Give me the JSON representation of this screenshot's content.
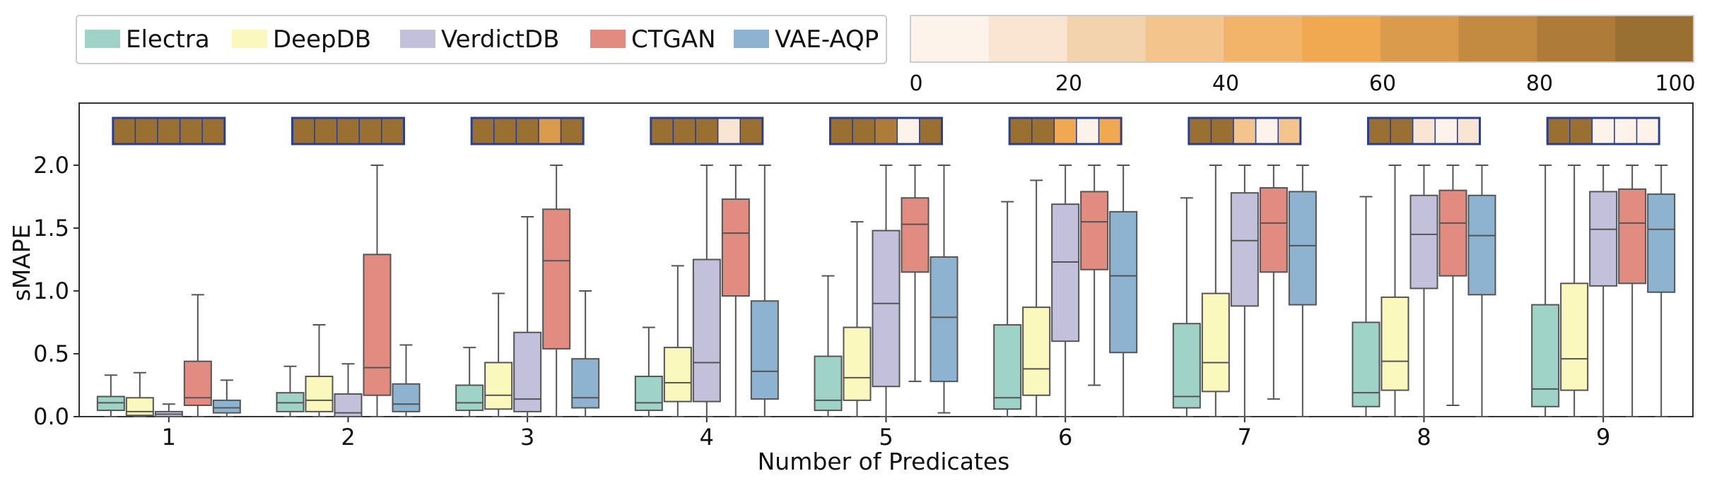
{
  "chart_data": {
    "type": "boxplot",
    "xlabel": "Number of Predicates",
    "ylabel": "sMAPE",
    "ylim": [
      0,
      2.5
    ],
    "yticks": [
      0.0,
      0.5,
      1.0,
      1.5,
      2.0
    ],
    "ytick_labels": [
      "0.0",
      "0.5",
      "1.0",
      "1.5",
      "2.0"
    ],
    "categories": [
      "1",
      "2",
      "3",
      "4",
      "5",
      "6",
      "7",
      "8",
      "9"
    ],
    "legend": [
      {
        "name": "Electra",
        "color": "#9fd3c7"
      },
      {
        "name": "DeepDB",
        "color": "#fbf8bd"
      },
      {
        "name": "VerdictDB",
        "color": "#c3c0dc"
      },
      {
        "name": "CTGAN",
        "color": "#e28b80"
      },
      {
        "name": "VAE-AQP",
        "color": "#8eb3d0"
      }
    ],
    "colorbar": {
      "min": 0,
      "max": 100,
      "tick_labels": [
        "0",
        "20",
        "40",
        "60",
        "80",
        "100"
      ],
      "colors": [
        "#fdf3ea",
        "#f9e5d1",
        "#f2d3ae",
        "#f3c48c",
        "#f1b469",
        "#f0a950",
        "#db9b4c",
        "#c38a41",
        "#ae7b38",
        "#9a6f32"
      ]
    },
    "series": [
      {
        "name": "Electra",
        "boxes": [
          {
            "wl": 0.0,
            "q1": 0.05,
            "med": 0.11,
            "q3": 0.16,
            "wh": 0.33
          },
          {
            "wl": 0.0,
            "q1": 0.04,
            "med": 0.11,
            "q3": 0.19,
            "wh": 0.4
          },
          {
            "wl": 0.0,
            "q1": 0.05,
            "med": 0.11,
            "q3": 0.25,
            "wh": 0.55
          },
          {
            "wl": 0.0,
            "q1": 0.05,
            "med": 0.11,
            "q3": 0.32,
            "wh": 0.71
          },
          {
            "wl": 0.0,
            "q1": 0.05,
            "med": 0.13,
            "q3": 0.48,
            "wh": 1.12
          },
          {
            "wl": 0.0,
            "q1": 0.06,
            "med": 0.15,
            "q3": 0.73,
            "wh": 1.71
          },
          {
            "wl": 0.0,
            "q1": 0.07,
            "med": 0.16,
            "q3": 0.74,
            "wh": 1.74
          },
          {
            "wl": 0.0,
            "q1": 0.08,
            "med": 0.19,
            "q3": 0.75,
            "wh": 1.75
          },
          {
            "wl": 0.0,
            "q1": 0.08,
            "med": 0.22,
            "q3": 0.89,
            "wh": 2.0
          }
        ]
      },
      {
        "name": "DeepDB",
        "boxes": [
          {
            "wl": 0.0,
            "q1": 0.01,
            "med": 0.04,
            "q3": 0.15,
            "wh": 0.35
          },
          {
            "wl": 0.0,
            "q1": 0.04,
            "med": 0.13,
            "q3": 0.32,
            "wh": 0.73
          },
          {
            "wl": 0.0,
            "q1": 0.06,
            "med": 0.17,
            "q3": 0.43,
            "wh": 0.98
          },
          {
            "wl": 0.0,
            "q1": 0.12,
            "med": 0.27,
            "q3": 0.55,
            "wh": 1.2
          },
          {
            "wl": 0.0,
            "q1": 0.13,
            "med": 0.31,
            "q3": 0.71,
            "wh": 1.55
          },
          {
            "wl": 0.0,
            "q1": 0.17,
            "med": 0.38,
            "q3": 0.87,
            "wh": 1.88
          },
          {
            "wl": 0.0,
            "q1": 0.2,
            "med": 0.43,
            "q3": 0.98,
            "wh": 2.0
          },
          {
            "wl": 0.0,
            "q1": 0.21,
            "med": 0.44,
            "q3": 0.95,
            "wh": 2.0
          },
          {
            "wl": 0.0,
            "q1": 0.21,
            "med": 0.46,
            "q3": 1.06,
            "wh": 2.0
          }
        ]
      },
      {
        "name": "VerdictDB",
        "boxes": [
          {
            "wl": 0.0,
            "q1": 0.0,
            "med": 0.02,
            "q3": 0.04,
            "wh": 0.1
          },
          {
            "wl": 0.0,
            "q1": 0.0,
            "med": 0.03,
            "q3": 0.18,
            "wh": 0.42
          },
          {
            "wl": 0.0,
            "q1": 0.04,
            "med": 0.14,
            "q3": 0.67,
            "wh": 1.59
          },
          {
            "wl": 0.0,
            "q1": 0.12,
            "med": 0.43,
            "q3": 1.25,
            "wh": 2.0
          },
          {
            "wl": 0.0,
            "q1": 0.24,
            "med": 0.9,
            "q3": 1.48,
            "wh": 2.0
          },
          {
            "wl": 0.0,
            "q1": 0.6,
            "med": 1.23,
            "q3": 1.69,
            "wh": 2.0
          },
          {
            "wl": 0.0,
            "q1": 0.88,
            "med": 1.4,
            "q3": 1.78,
            "wh": 2.0
          },
          {
            "wl": 0.0,
            "q1": 1.02,
            "med": 1.45,
            "q3": 1.76,
            "wh": 2.0
          },
          {
            "wl": 0.0,
            "q1": 1.04,
            "med": 1.49,
            "q3": 1.79,
            "wh": 2.0
          }
        ]
      },
      {
        "name": "CTGAN",
        "boxes": [
          {
            "wl": 0.0,
            "q1": 0.09,
            "med": 0.15,
            "q3": 0.44,
            "wh": 0.97
          },
          {
            "wl": 0.0,
            "q1": 0.17,
            "med": 0.39,
            "q3": 1.29,
            "wh": 2.0
          },
          {
            "wl": 0.0,
            "q1": 0.54,
            "med": 1.24,
            "q3": 1.65,
            "wh": 2.0
          },
          {
            "wl": 0.0,
            "q1": 0.96,
            "med": 1.46,
            "q3": 1.73,
            "wh": 2.0
          },
          {
            "wl": 0.28,
            "q1": 1.15,
            "med": 1.53,
            "q3": 1.74,
            "wh": 2.0
          },
          {
            "wl": 0.25,
            "q1": 1.17,
            "med": 1.55,
            "q3": 1.79,
            "wh": 2.0
          },
          {
            "wl": 0.14,
            "q1": 1.15,
            "med": 1.54,
            "q3": 1.82,
            "wh": 2.0
          },
          {
            "wl": 0.09,
            "q1": 1.12,
            "med": 1.54,
            "q3": 1.8,
            "wh": 2.0
          },
          {
            "wl": 0.0,
            "q1": 1.06,
            "med": 1.54,
            "q3": 1.81,
            "wh": 2.0
          }
        ]
      },
      {
        "name": "VAE-AQP",
        "boxes": [
          {
            "wl": 0.0,
            "q1": 0.03,
            "med": 0.07,
            "q3": 0.13,
            "wh": 0.29
          },
          {
            "wl": 0.0,
            "q1": 0.04,
            "med": 0.1,
            "q3": 0.26,
            "wh": 0.57
          },
          {
            "wl": 0.0,
            "q1": 0.07,
            "med": 0.15,
            "q3": 0.46,
            "wh": 1.0
          },
          {
            "wl": 0.0,
            "q1": 0.14,
            "med": 0.36,
            "q3": 0.92,
            "wh": 2.0
          },
          {
            "wl": 0.03,
            "q1": 0.28,
            "med": 0.79,
            "q3": 1.27,
            "wh": 2.0
          },
          {
            "wl": 0.0,
            "q1": 0.51,
            "med": 1.12,
            "q3": 1.63,
            "wh": 2.0
          },
          {
            "wl": 0.0,
            "q1": 0.89,
            "med": 1.36,
            "q3": 1.79,
            "wh": 2.0
          },
          {
            "wl": 0.0,
            "q1": 0.97,
            "med": 1.44,
            "q3": 1.76,
            "wh": 2.0
          },
          {
            "wl": 0.0,
            "q1": 0.99,
            "med": 1.49,
            "q3": 1.77,
            "wh": 2.0
          }
        ]
      }
    ],
    "heat_strips": [
      [
        100,
        100,
        100,
        100,
        100
      ],
      [
        100,
        100,
        100,
        100,
        100
      ],
      [
        100,
        100,
        100,
        60,
        100
      ],
      [
        100,
        100,
        100,
        15,
        100
      ],
      [
        100,
        100,
        82,
        2,
        90
      ],
      [
        100,
        100,
        55,
        2,
        55
      ],
      [
        100,
        100,
        35,
        2,
        35
      ],
      [
        100,
        100,
        18,
        2,
        18
      ],
      [
        100,
        100,
        8,
        2,
        8
      ]
    ]
  }
}
